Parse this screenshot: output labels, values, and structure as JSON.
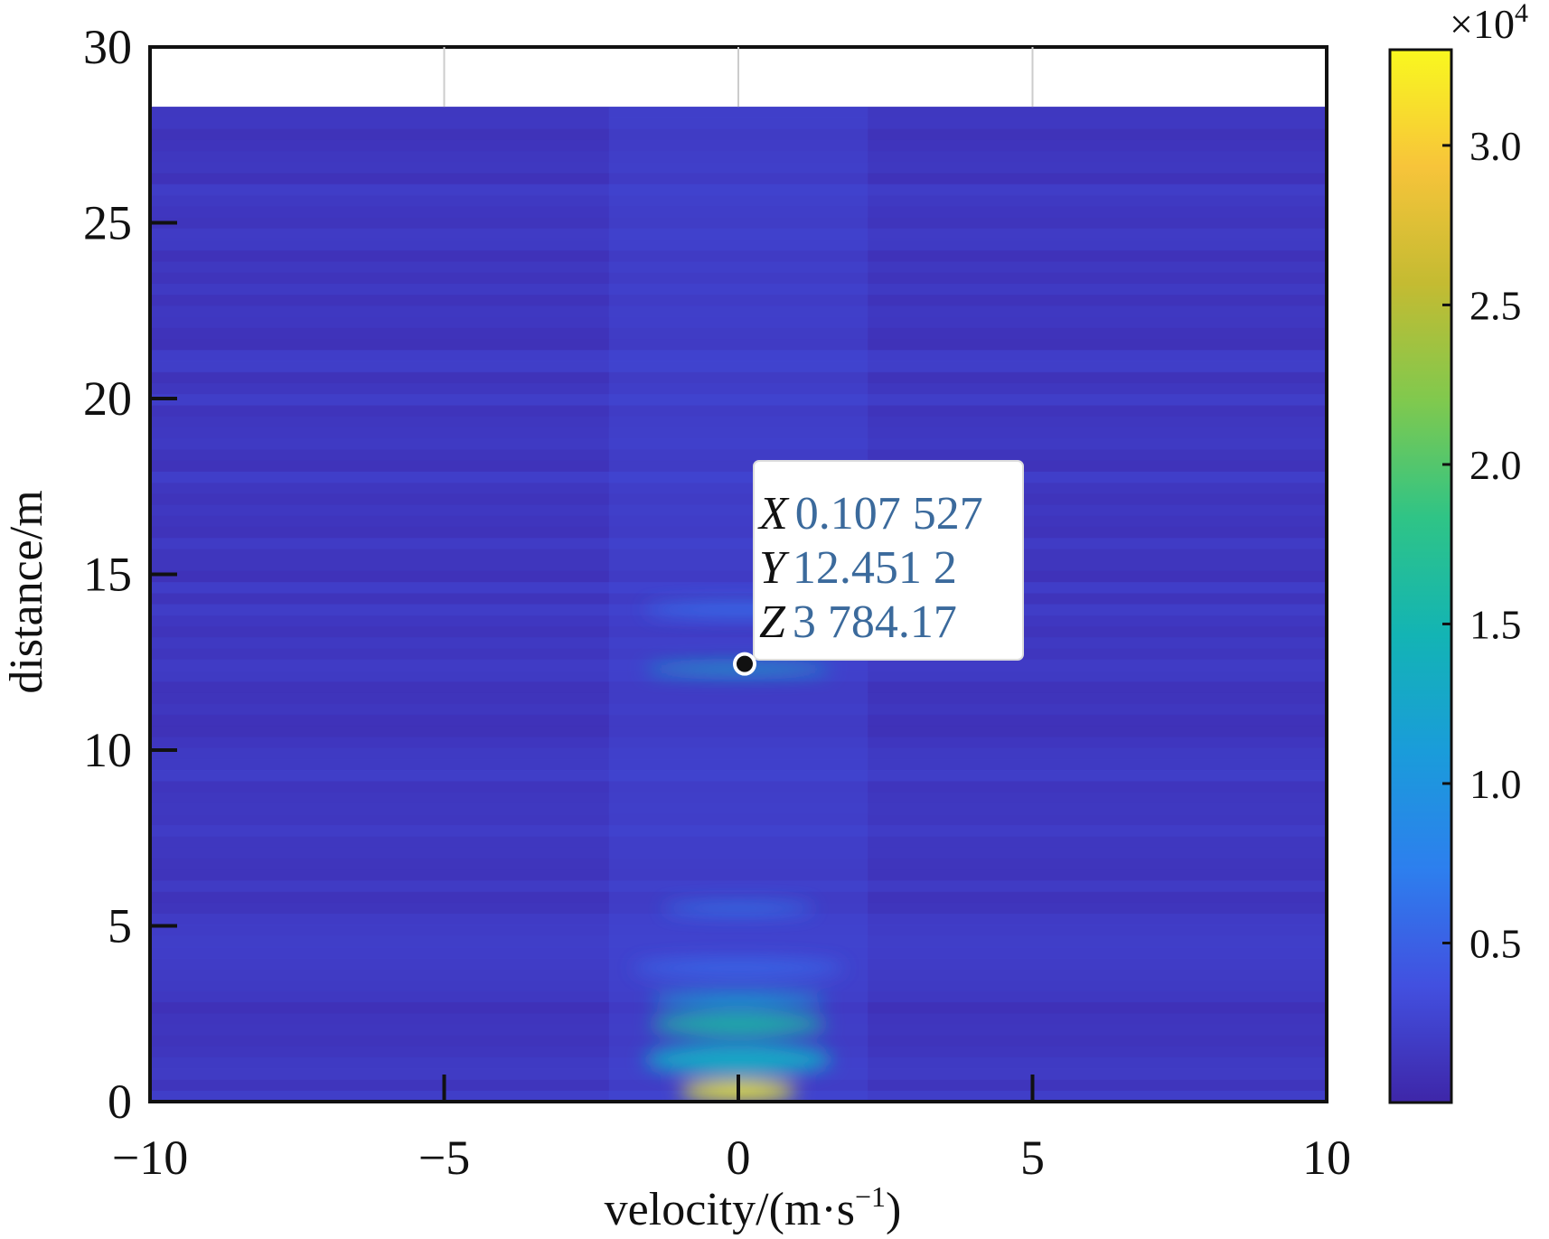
{
  "chart_data": {
    "type": "heatmap",
    "title": "",
    "xlabel": "velocity/(m·s",
    "xlabel_sup": "−1",
    "xlabel_end": ")",
    "ylabel": "distance/m",
    "xlim": [
      -10,
      10
    ],
    "ylim": [
      0,
      30
    ],
    "data_ymax": 28.3,
    "x_ticks": [
      -10,
      -5,
      0,
      5,
      10
    ],
    "x_tick_labels": [
      "−10",
      "−5",
      "0",
      "5",
      "10"
    ],
    "y_ticks": [
      0,
      5,
      10,
      15,
      20,
      25,
      30
    ],
    "y_tick_labels": [
      "0",
      "5",
      "10",
      "15",
      "20",
      "25",
      "30"
    ],
    "grid": false,
    "colormap": "parula",
    "colormap_stops": [
      "#3e26a8",
      "#4250e0",
      "#2d7fee",
      "#1a9cda",
      "#13b4b4",
      "#2fc486",
      "#80c94e",
      "#c4bb32",
      "#f7c43a",
      "#f9f81f"
    ],
    "colorbar": {
      "multiplier_base": "×10",
      "multiplier_exp": "4",
      "range": [
        0,
        3.3
      ],
      "ticks": [
        0.5,
        1.0,
        1.5,
        2.0,
        2.5,
        3.0
      ],
      "tick_labels": [
        "0.5",
        "1.0",
        "1.5",
        "2.0",
        "2.5",
        "3.0"
      ]
    },
    "features": [
      {
        "velocity": 0.0,
        "distance": 0.3,
        "value": 3.3,
        "half_width_v": 1.0,
        "half_width_d": 0.25
      },
      {
        "velocity": 0.0,
        "distance": 1.2,
        "value": 1.3,
        "half_width_v": 1.6,
        "half_width_d": 0.45
      },
      {
        "velocity": 0.0,
        "distance": 2.2,
        "value": 1.6,
        "half_width_v": 1.5,
        "half_width_d": 0.3
      },
      {
        "velocity": 0.0,
        "distance": 2.9,
        "value": 1.2,
        "half_width_v": 1.5,
        "half_width_d": 0.2
      },
      {
        "velocity": 0.0,
        "distance": 5.5,
        "value": 0.7,
        "half_width_v": 1.3,
        "half_width_d": 0.15
      },
      {
        "velocity": 0.0,
        "distance": 12.3,
        "value": 1.3,
        "half_width_v": 1.6,
        "half_width_d": 0.15
      },
      {
        "velocity": 0.0,
        "distance": 14.0,
        "value": 0.6,
        "half_width_v": 1.6,
        "half_width_d": 0.2
      },
      {
        "velocity": 0.0,
        "distance": 3.8,
        "value": 0.55,
        "half_width_v": 1.8,
        "half_width_d": 0.25
      }
    ],
    "datatip": {
      "x_key": "X",
      "x_value": "0.107 527",
      "y_key": "Y",
      "y_value": "12.451 2",
      "z_key": "Z",
      "z_value": "3 784.17",
      "point": {
        "velocity": 0.107527,
        "distance": 12.4512
      }
    }
  }
}
